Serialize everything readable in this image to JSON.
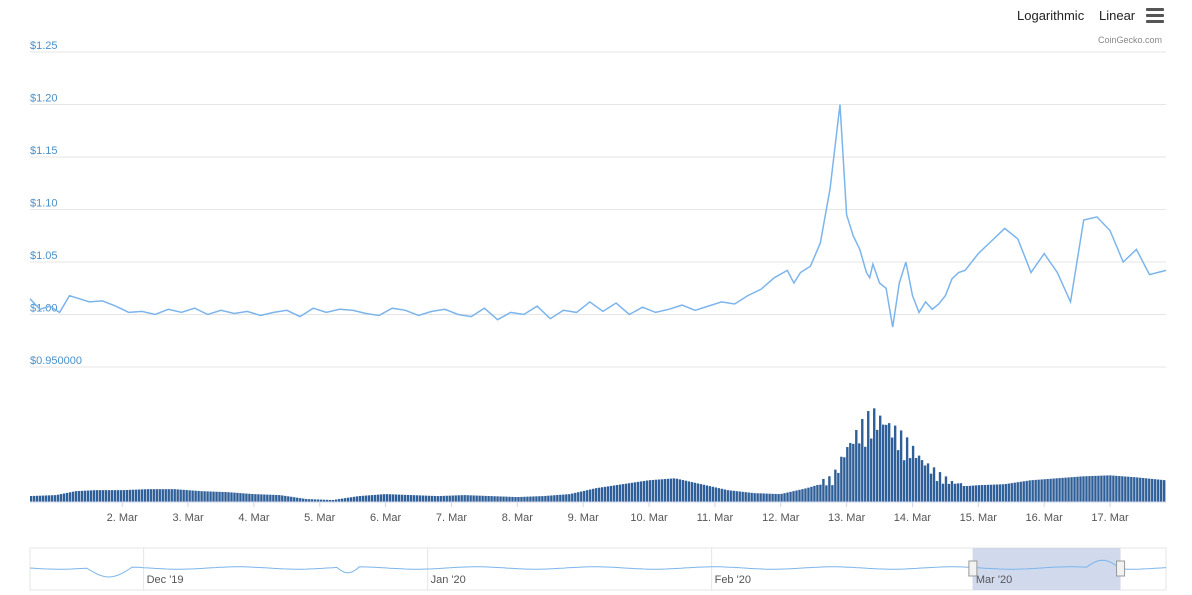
{
  "toolbar": {
    "log_label": "Logarithmic",
    "linear_label": "Linear",
    "menu_icon": "hamburger-menu-icon",
    "credit": "CoinGecko.com"
  },
  "colors": {
    "price_line": "#7cb5ec",
    "volume_bar": "#2f5f98",
    "grid": "#e6e6e6",
    "y_label": "#4a90c8",
    "navigator_mask": "#ccd6eb"
  },
  "chart_data": [
    {
      "type": "line",
      "title": "",
      "xlabel": "",
      "ylabel": "",
      "ylim": [
        0.95,
        1.25
      ],
      "xlim": [
        0.6,
        17.85
      ],
      "y_tick_labels": [
        "$0.950000",
        "$1.00",
        "$1.05",
        "$1.10",
        "$1.15",
        "$1.20",
        "$1.25"
      ],
      "y_ticks": [
        0.95,
        1.0,
        1.05,
        1.1,
        1.15,
        1.2,
        1.25
      ],
      "grid": true,
      "x": [
        0.6,
        0.75,
        0.9,
        1.05,
        1.2,
        1.3,
        1.5,
        1.7,
        1.9,
        2.1,
        2.3,
        2.5,
        2.7,
        2.9,
        3.1,
        3.3,
        3.5,
        3.7,
        3.9,
        4.1,
        4.3,
        4.5,
        4.7,
        4.9,
        5.1,
        5.3,
        5.5,
        5.7,
        5.9,
        6.1,
        6.3,
        6.5,
        6.7,
        6.9,
        7.1,
        7.3,
        7.5,
        7.7,
        7.9,
        8.1,
        8.3,
        8.5,
        8.7,
        8.9,
        9.1,
        9.3,
        9.5,
        9.7,
        9.9,
        10.1,
        10.3,
        10.5,
        10.7,
        10.9,
        11.1,
        11.3,
        11.5,
        11.7,
        11.9,
        12.1,
        12.2,
        12.3,
        12.45,
        12.6,
        12.75,
        12.9,
        13.0,
        13.1,
        13.2,
        13.3,
        13.35,
        13.4,
        13.5,
        13.6,
        13.7,
        13.8,
        13.9,
        14.0,
        14.1,
        14.2,
        14.3,
        14.4,
        14.5,
        14.6,
        14.7,
        14.8,
        15.0,
        15.2,
        15.4,
        15.6,
        15.8,
        16.0,
        16.2,
        16.4,
        16.6,
        16.8,
        17.0,
        17.2,
        17.4,
        17.6,
        17.85
      ],
      "y": [
        1.015,
        1.005,
        1.008,
        1.002,
        1.018,
        1.016,
        1.012,
        1.013,
        1.008,
        1.002,
        1.003,
        1.0,
        1.005,
        1.002,
        1.006,
        1.0,
        1.004,
        1.001,
        1.003,
        0.999,
        1.002,
        1.004,
        0.998,
        1.006,
        1.002,
        1.005,
        1.004,
        1.001,
        0.999,
        1.006,
        1.004,
        0.999,
        1.003,
        1.005,
        1.0,
        0.998,
        1.006,
        0.995,
        1.002,
        1.0,
        1.008,
        0.996,
        1.004,
        1.002,
        1.012,
        1.003,
        1.011,
        1.0,
        1.007,
        1.002,
        1.005,
        1.009,
        1.004,
        1.008,
        1.012,
        1.01,
        1.018,
        1.024,
        1.035,
        1.042,
        1.03,
        1.04,
        1.046,
        1.068,
        1.12,
        1.2,
        1.095,
        1.075,
        1.062,
        1.04,
        1.035,
        1.048,
        1.03,
        1.025,
        0.988,
        1.03,
        1.05,
        1.018,
        1.002,
        1.012,
        1.005,
        1.01,
        1.018,
        1.034,
        1.04,
        1.042,
        1.058,
        1.07,
        1.082,
        1.072,
        1.04,
        1.058,
        1.04,
        1.012,
        1.09,
        1.093,
        1.08,
        1.05,
        1.062,
        1.038,
        1.042
      ]
    },
    {
      "type": "bar",
      "title": "",
      "series": [
        {
          "x": [
            0.6,
            1.0,
            1.3,
            1.6,
            2.0,
            2.4,
            2.8,
            3.2,
            3.6,
            4.0,
            4.4,
            4.8,
            5.2,
            5.6,
            6.0,
            6.4,
            6.8,
            7.2,
            7.6,
            8.0,
            8.4,
            8.8,
            9.2,
            9.6,
            10.0,
            10.4,
            10.8,
            11.2,
            11.6,
            12.0,
            12.4,
            12.8,
            13.0,
            13.2,
            13.4,
            13.6,
            13.8,
            14.0,
            14.2,
            14.4,
            14.6,
            14.8,
            15.0,
            15.4,
            15.8,
            16.2,
            16.6,
            17.0,
            17.4,
            17.85
          ],
          "values": [
            6,
            7,
            11,
            12,
            12,
            13,
            13,
            11,
            10,
            8,
            7,
            3,
            2,
            6,
            8,
            7,
            6,
            7,
            6,
            5,
            6,
            8,
            14,
            18,
            22,
            24,
            18,
            12,
            9,
            8,
            14,
            22,
            48,
            65,
            78,
            72,
            60,
            48,
            35,
            25,
            18,
            16,
            17,
            18,
            22,
            24,
            26,
            27,
            25,
            22
          ]
        }
      ]
    },
    {
      "type": "line",
      "title": "",
      "x_tick_labels": [
        "Dec '19",
        "Jan '20",
        "Feb '20",
        "Mar '20"
      ],
      "x_ticks": [
        0.1,
        0.35,
        0.6,
        0.83
      ],
      "selection": [
        0.83,
        0.96
      ]
    }
  ],
  "x_tick_labels": [
    "2. Mar",
    "3. Mar",
    "4. Mar",
    "5. Mar",
    "6. Mar",
    "7. Mar",
    "8. Mar",
    "9. Mar",
    "10. Mar",
    "11. Mar",
    "12. Mar",
    "13. Mar",
    "14. Mar",
    "15. Mar",
    "16. Mar",
    "17. Mar"
  ],
  "x_ticks": [
    2,
    3,
    4,
    5,
    6,
    7,
    8,
    9,
    10,
    11,
    12,
    13,
    14,
    15,
    16,
    17
  ]
}
